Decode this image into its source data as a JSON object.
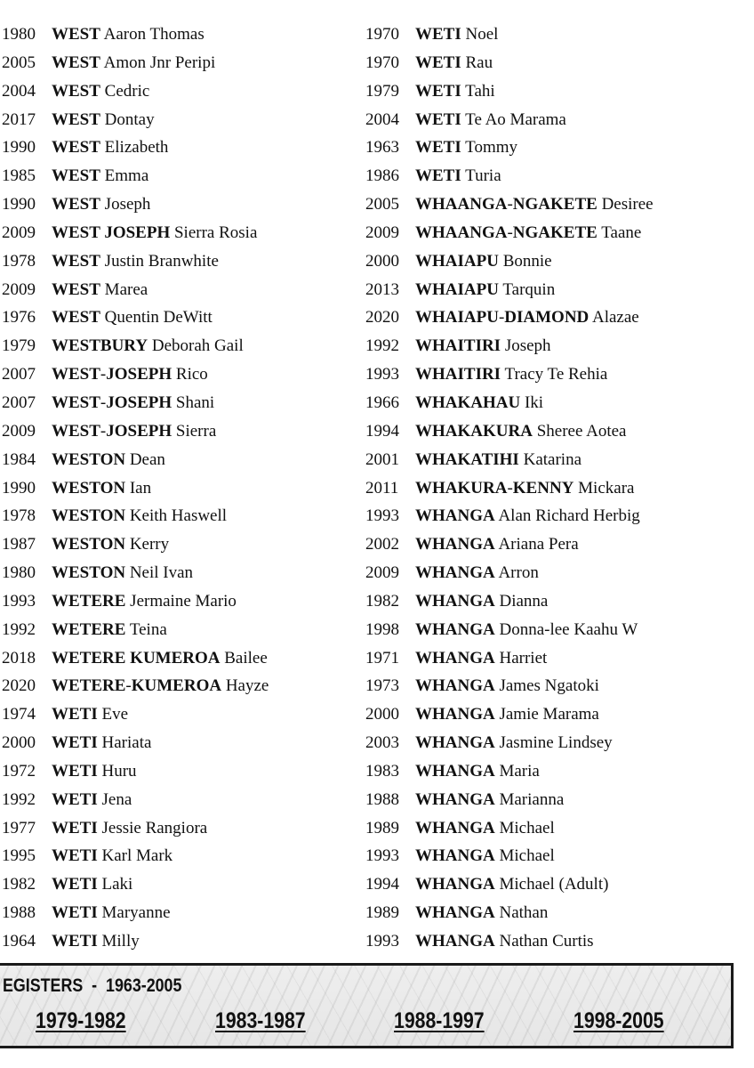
{
  "left_column": [
    {
      "year": "1980",
      "surname": "WEST",
      "given": "Aaron Thomas"
    },
    {
      "year": "2005",
      "surname": "WEST",
      "given": "Amon Jnr Peripi"
    },
    {
      "year": "2004",
      "surname": "WEST",
      "given": "Cedric"
    },
    {
      "year": "2017",
      "surname": "WEST",
      "given": "Dontay"
    },
    {
      "year": "1990",
      "surname": "WEST",
      "given": "Elizabeth"
    },
    {
      "year": "1985",
      "surname": "WEST",
      "given": "Emma"
    },
    {
      "year": "1990",
      "surname": "WEST",
      "given": "Joseph"
    },
    {
      "year": "2009",
      "surname": "WEST JOSEPH",
      "given": "Sierra Rosia"
    },
    {
      "year": "1978",
      "surname": "WEST",
      "given": "Justin Branwhite"
    },
    {
      "year": "2009",
      "surname": "WEST",
      "given": "Marea"
    },
    {
      "year": "1976",
      "surname": "WEST",
      "given": "Quentin DeWitt"
    },
    {
      "year": "1979",
      "surname": "WESTBURY",
      "given": "Deborah Gail"
    },
    {
      "year": "2007",
      "surname": "WEST-JOSEPH",
      "given": "Rico"
    },
    {
      "year": "2007",
      "surname": "WEST-JOSEPH",
      "given": "Shani"
    },
    {
      "year": "2009",
      "surname": "WEST-JOSEPH",
      "given": "Sierra"
    },
    {
      "year": "1984",
      "surname": "WESTON",
      "given": "Dean"
    },
    {
      "year": "1990",
      "surname": "WESTON",
      "given": "Ian"
    },
    {
      "year": "1978",
      "surname": "WESTON",
      "given": "Keith Haswell"
    },
    {
      "year": "1987",
      "surname": "WESTON",
      "given": "Kerry"
    },
    {
      "year": "1980",
      "surname": "WESTON",
      "given": "Neil Ivan"
    },
    {
      "year": "1993",
      "surname": "WETERE",
      "given": "Jermaine Mario"
    },
    {
      "year": "1992",
      "surname": "WETERE",
      "given": "Teina"
    },
    {
      "year": "2018",
      "surname": "WETERE KUMEROA",
      "given": "Bailee"
    },
    {
      "year": "2020",
      "surname": "WETERE-KUMEROA",
      "given": "Hayze"
    },
    {
      "year": "1974",
      "surname": "WETI",
      "given": "Eve"
    },
    {
      "year": "2000",
      "surname": "WETI",
      "given": "Hariata"
    },
    {
      "year": "1972",
      "surname": "WETI",
      "given": "Huru"
    },
    {
      "year": "1992",
      "surname": "WETI",
      "given": "Jena"
    },
    {
      "year": "1977",
      "surname": "WETI",
      "given": "Jessie Rangiora"
    },
    {
      "year": "1995",
      "surname": "WETI",
      "given": "Karl Mark"
    },
    {
      "year": "1982",
      "surname": "WETI",
      "given": "Laki"
    },
    {
      "year": "1988",
      "surname": "WETI",
      "given": "Maryanne"
    },
    {
      "year": "1964",
      "surname": "WETI",
      "given": "Milly"
    }
  ],
  "right_column": [
    {
      "year": "1970",
      "surname": "WETI",
      "given": "Noel"
    },
    {
      "year": "1970",
      "surname": "WETI",
      "given": "Rau"
    },
    {
      "year": "1979",
      "surname": "WETI",
      "given": "Tahi"
    },
    {
      "year": "2004",
      "surname": "WETI",
      "given": "Te Ao Marama"
    },
    {
      "year": "1963",
      "surname": "WETI",
      "given": "Tommy"
    },
    {
      "year": "1986",
      "surname": "WETI",
      "given": "Turia"
    },
    {
      "year": "2005",
      "surname": "WHAANGA-NGAKETE",
      "given": "Desiree"
    },
    {
      "year": "2009",
      "surname": "WHAANGA-NGAKETE",
      "given": "Taane"
    },
    {
      "year": "2000",
      "surname": "WHAIAPU",
      "given": "Bonnie"
    },
    {
      "year": "2013",
      "surname": "WHAIAPU",
      "given": "Tarquin"
    },
    {
      "year": "2020",
      "surname": "WHAIAPU-DIAMOND",
      "given": "Alazae"
    },
    {
      "year": "1992",
      "surname": "WHAITIRI",
      "given": "Joseph"
    },
    {
      "year": "1993",
      "surname": "WHAITIRI",
      "given": "Tracy Te Rehia"
    },
    {
      "year": "1966",
      "surname": "WHAKAHAU",
      "given": "Iki"
    },
    {
      "year": "1994",
      "surname": "WHAKAKURA",
      "given": "Sheree Aotea"
    },
    {
      "year": "2001",
      "surname": "WHAKATIHI",
      "given": "Katarina"
    },
    {
      "year": "2011",
      "surname": "WHAKURA-KENNY",
      "given": "Mickara"
    },
    {
      "year": "1993",
      "surname": "WHANGA",
      "given": "Alan Richard Herbig"
    },
    {
      "year": "2002",
      "surname": "WHANGA",
      "given": "Ariana Pera"
    },
    {
      "year": "2009",
      "surname": "WHANGA",
      "given": "Arron"
    },
    {
      "year": "1982",
      "surname": "WHANGA",
      "given": "Dianna"
    },
    {
      "year": "1998",
      "surname": "WHANGA",
      "given": "Donna-lee Kaahu W"
    },
    {
      "year": "1971",
      "surname": "WHANGA",
      "given": "Harriet"
    },
    {
      "year": "1973",
      "surname": "WHANGA",
      "given": "James Ngatoki"
    },
    {
      "year": "2000",
      "surname": "WHANGA",
      "given": "Jamie Marama"
    },
    {
      "year": "2003",
      "surname": "WHANGA",
      "given": "Jasmine Lindsey"
    },
    {
      "year": "1983",
      "surname": "WHANGA",
      "given": "Maria"
    },
    {
      "year": "1988",
      "surname": "WHANGA",
      "given": "Marianna"
    },
    {
      "year": "1989",
      "surname": "WHANGA",
      "given": "Michael"
    },
    {
      "year": "1993",
      "surname": "WHANGA",
      "given": "Michael"
    },
    {
      "year": "1994",
      "surname": "WHANGA",
      "given": "Michael (Adult)"
    },
    {
      "year": "1989",
      "surname": "WHANGA",
      "given": "Nathan"
    },
    {
      "year": "1993",
      "surname": "WHANGA",
      "given": "Nathan Curtis"
    }
  ],
  "banner": {
    "title": "EGISTERS  -  1963-2005",
    "links": [
      "1979-1982",
      "1983-1987",
      "1988-1997",
      "1998-2005"
    ]
  }
}
